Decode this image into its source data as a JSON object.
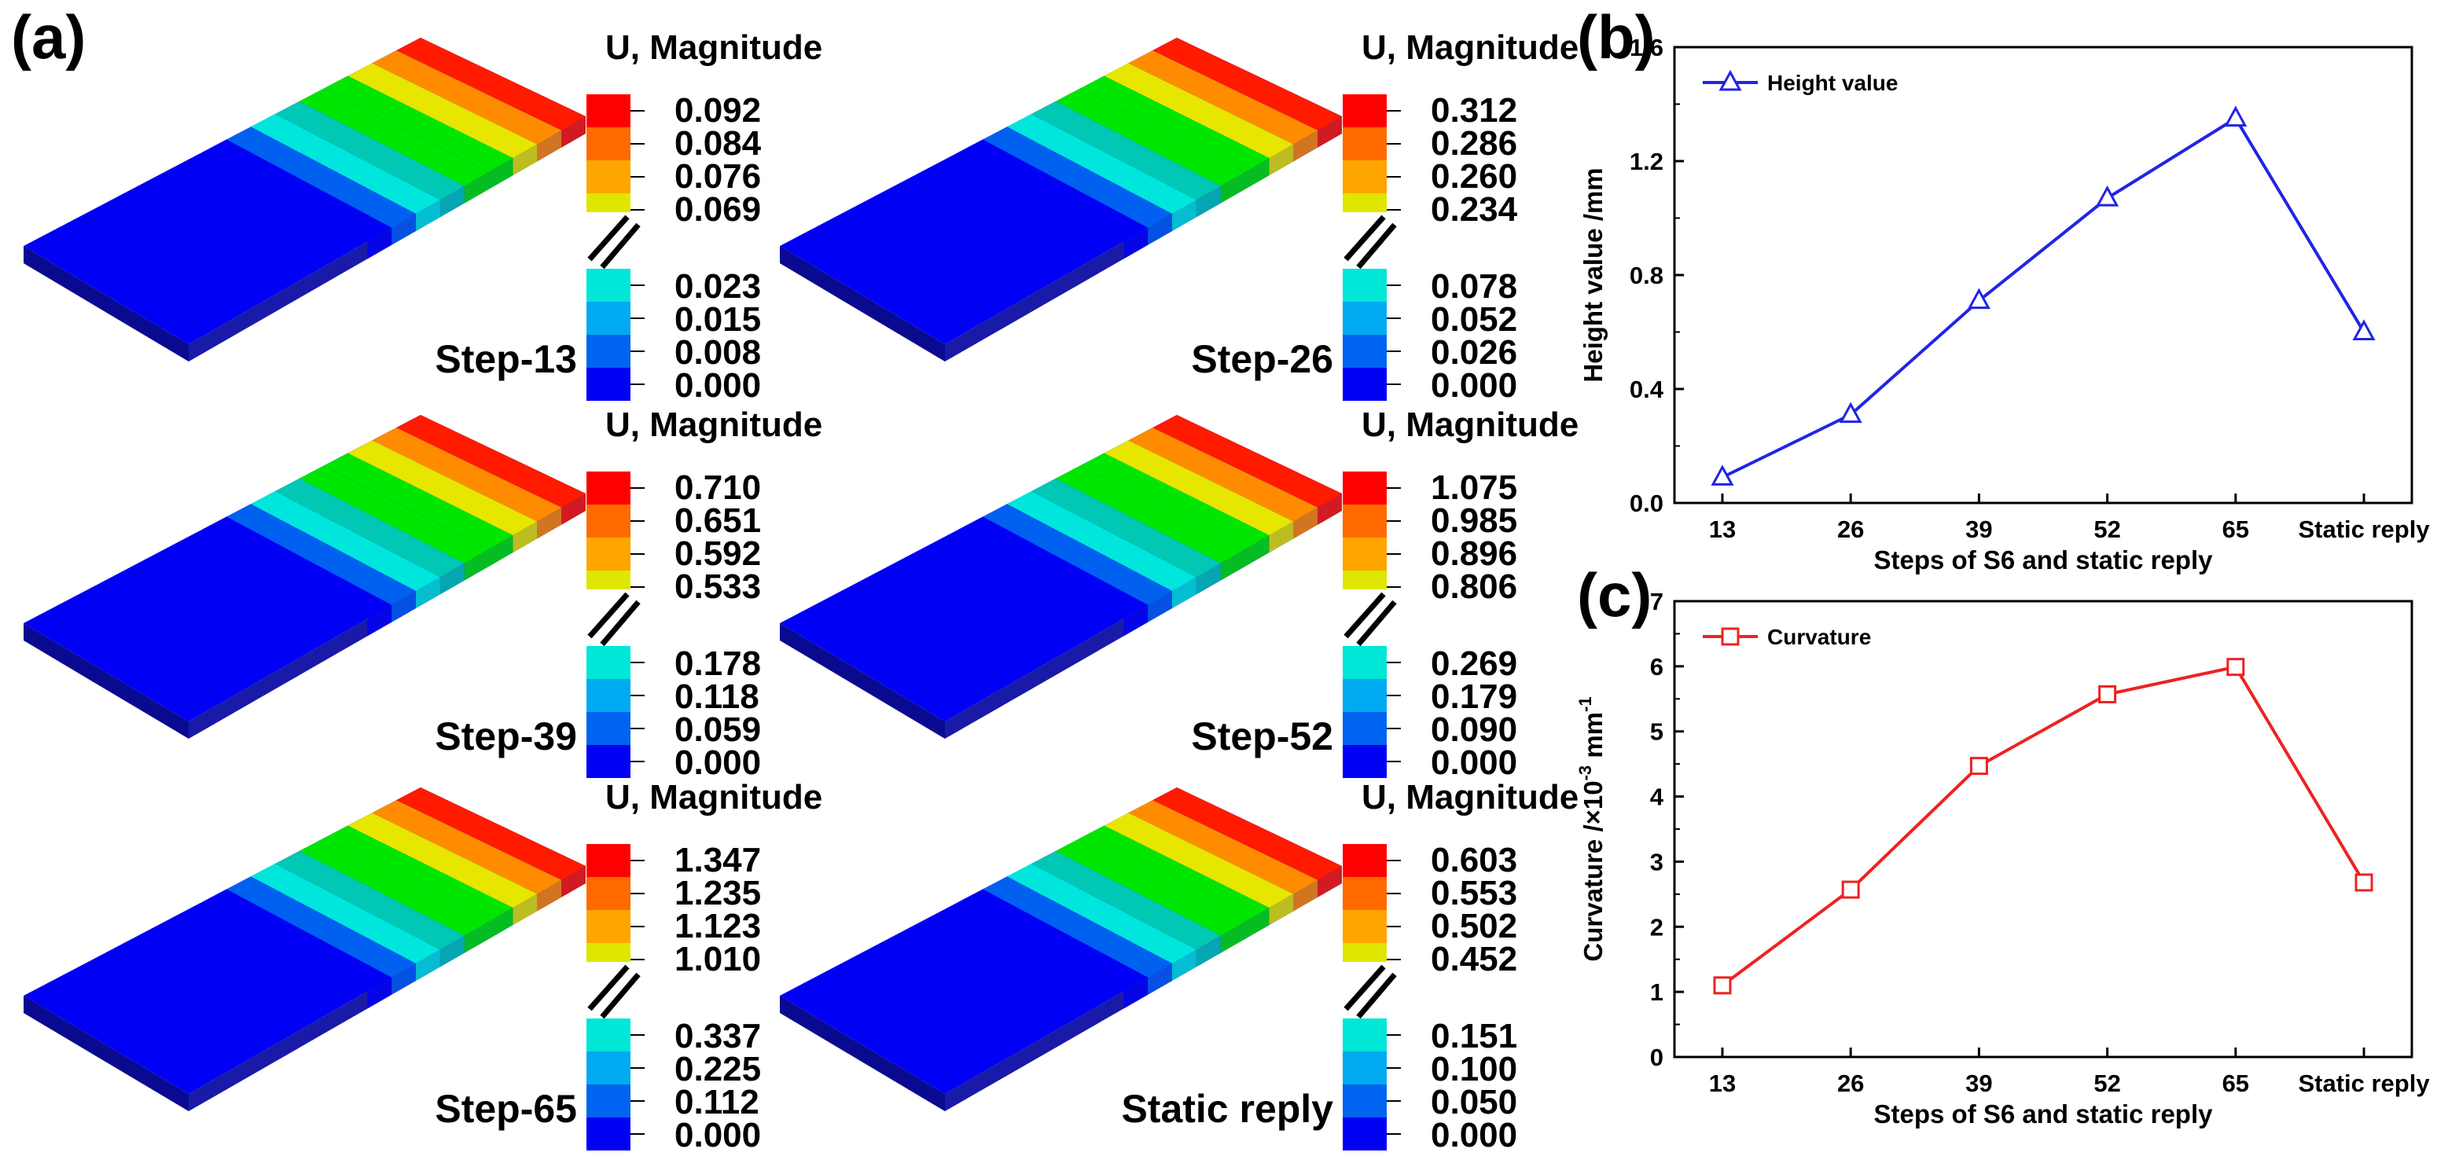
{
  "panel_labels": {
    "a": "(a)",
    "b": "(b)",
    "c": "(c)"
  },
  "legend_scale_colors_high": [
    "#ff0000",
    "#ff6a00",
    "#ffa500",
    "#dfe600"
  ],
  "legend_scale_colors_low": [
    "#00e6d7",
    "#00aaf0",
    "#0064f0",
    "#0000f5"
  ],
  "contours": [
    {
      "title": "U, Magnitude",
      "step": "Step-13",
      "high": [
        "0.092",
        "0.084",
        "0.076",
        "0.069"
      ],
      "low": [
        "0.023",
        "0.015",
        "0.008",
        "0.000"
      ]
    },
    {
      "title": "U, Magnitude",
      "step": "Step-26",
      "high": [
        "0.312",
        "0.286",
        "0.260",
        "0.234"
      ],
      "low": [
        "0.078",
        "0.052",
        "0.026",
        "0.000"
      ]
    },
    {
      "title": "U, Magnitude",
      "step": "Step-39",
      "high": [
        "0.710",
        "0.651",
        "0.592",
        "0.533"
      ],
      "low": [
        "0.178",
        "0.118",
        "0.059",
        "0.000"
      ]
    },
    {
      "title": "U, Magnitude",
      "step": "Step-52",
      "high": [
        "1.075",
        "0.985",
        "0.896",
        "0.806"
      ],
      "low": [
        "0.269",
        "0.179",
        "0.090",
        "0.000"
      ]
    },
    {
      "title": "U, Magnitude",
      "step": "Step-65",
      "high": [
        "1.347",
        "1.235",
        "1.123",
        "1.010"
      ],
      "low": [
        "0.337",
        "0.225",
        "0.112",
        "0.000"
      ]
    },
    {
      "title": "U, Magnitude",
      "step": "Static reply",
      "high": [
        "0.603",
        "0.553",
        "0.502",
        "0.452"
      ],
      "low": [
        "0.151",
        "0.100",
        "0.050",
        "0.000"
      ]
    }
  ],
  "chart_data": [
    {
      "type": "line",
      "categories": [
        "13",
        "26",
        "39",
        "52",
        "65",
        "Static reply"
      ],
      "series": [
        {
          "name": "Height value",
          "values": [
            0.09,
            0.31,
            0.71,
            1.07,
            1.35,
            0.6
          ],
          "color": "#2323e6",
          "marker": "triangle"
        }
      ],
      "xlabel": "Steps of S6 and static reply",
      "ylabel": "Height value /mm",
      "ylim": [
        0,
        1.6
      ],
      "yticks": [
        "0.0",
        "0.4",
        "0.8",
        "1.2",
        "1.6"
      ],
      "legend": "top-left",
      "grid": false
    },
    {
      "type": "line",
      "categories": [
        "13",
        "26",
        "39",
        "52",
        "65",
        "Static reply"
      ],
      "series": [
        {
          "name": "Curvature",
          "values": [
            1.1,
            2.57,
            4.47,
            5.57,
            5.99,
            2.68
          ],
          "color": "#ee2222",
          "marker": "square"
        }
      ],
      "xlabel": "Steps of S6 and static reply",
      "ylabel": "Curvature /×10",
      "ylabel_sup": "-3",
      "ylabel_unit": "mm",
      "ylabel_unit_sup": "-1",
      "ylim": [
        0,
        7
      ],
      "yticks": [
        "0",
        "1",
        "2",
        "3",
        "4",
        "5",
        "6",
        "7"
      ],
      "legend": "top-left",
      "grid": false
    }
  ]
}
